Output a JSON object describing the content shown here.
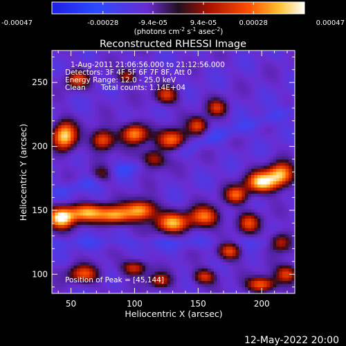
{
  "chart_data": {
    "type": "heatmap",
    "title": "Reconstructed RHESSI Image",
    "xlabel": "Heliocentric X (arcsec)",
    "ylabel": "Heliocentric Y (arcsec)",
    "xlim": [
      35,
      226
    ],
    "ylim": [
      85,
      275
    ],
    "xticks": [
      50,
      100,
      150,
      200
    ],
    "yticks": [
      100,
      150,
      200,
      250
    ],
    "colorbar": {
      "min": -0.00047,
      "max": 0.00047,
      "colormap": "rainbow-blue-to-white-hot",
      "tick_values": [
        -0.00047,
        -0.00028,
        -9.4e-05,
        9.4e-05,
        0.00028,
        0.00047
      ],
      "tick_labels": [
        "-0.00047",
        "-0.00028",
        "-9.4e-05",
        "9.4e-05",
        "0.00028",
        "0.00047"
      ],
      "unit_label_main": "(photons cm",
      "unit_exp1": "-2",
      "unit_mid": " s",
      "unit_exp2": "-1",
      "unit_mid2": " asec",
      "unit_exp3": "-2",
      "unit_tail": ")"
    },
    "annotations": {
      "time_range": "1-Aug-2011 21:06:56.000 to 21:12:56.000",
      "detectors": "Detectors: 3F 4F 5F 6F 7F 8F, Att 0",
      "energy_range": "Energy Range: 12.0 - 25.0 keV",
      "algorithm": "Clean",
      "total_counts": "Total counts: 1.14E+04",
      "peak_position": "Position of Peak = [45,144]"
    },
    "hot_regions": [
      {
        "x": 42,
        "y": 144,
        "w": 10,
        "h": 8,
        "v": 1.0
      },
      {
        "x": 45,
        "y": 208,
        "w": 9,
        "h": 11,
        "v": 0.95
      },
      {
        "x": 62,
        "y": 148,
        "w": 16,
        "h": 7,
        "v": 0.8
      },
      {
        "x": 85,
        "y": 146,
        "w": 12,
        "h": 7,
        "v": 0.75
      },
      {
        "x": 105,
        "y": 150,
        "w": 12,
        "h": 8,
        "v": 0.85
      },
      {
        "x": 130,
        "y": 140,
        "w": 13,
        "h": 8,
        "v": 0.8
      },
      {
        "x": 155,
        "y": 145,
        "w": 12,
        "h": 8,
        "v": 0.7
      },
      {
        "x": 75,
        "y": 205,
        "w": 9,
        "h": 8,
        "v": 0.7
      },
      {
        "x": 100,
        "y": 210,
        "w": 10,
        "h": 8,
        "v": 0.8
      },
      {
        "x": 115,
        "y": 190,
        "w": 10,
        "h": 7,
        "v": 0.65
      },
      {
        "x": 130,
        "y": 205,
        "w": 11,
        "h": 8,
        "v": 0.75
      },
      {
        "x": 150,
        "y": 216,
        "w": 8,
        "h": 7,
        "v": 0.6
      },
      {
        "x": 165,
        "y": 230,
        "w": 8,
        "h": 7,
        "v": 0.5
      },
      {
        "x": 200,
        "y": 172,
        "w": 12,
        "h": 8,
        "v": 0.95
      },
      {
        "x": 215,
        "y": 178,
        "w": 10,
        "h": 9,
        "v": 0.85
      },
      {
        "x": 180,
        "y": 162,
        "w": 9,
        "h": 7,
        "v": 0.65
      },
      {
        "x": 190,
        "y": 140,
        "w": 9,
        "h": 8,
        "v": 0.55
      },
      {
        "x": 175,
        "y": 118,
        "w": 9,
        "h": 7,
        "v": 0.6
      },
      {
        "x": 215,
        "y": 125,
        "w": 9,
        "h": 7,
        "v": 0.6
      },
      {
        "x": 55,
        "y": 252,
        "w": 9,
        "h": 7,
        "v": 0.55
      },
      {
        "x": 95,
        "y": 255,
        "w": 8,
        "h": 6,
        "v": 0.45
      },
      {
        "x": 125,
        "y": 240,
        "w": 9,
        "h": 7,
        "v": 0.55
      },
      {
        "x": 75,
        "y": 178,
        "w": 8,
        "h": 6,
        "v": 0.4
      },
      {
        "x": 60,
        "y": 100,
        "w": 12,
        "h": 7,
        "v": 0.6
      },
      {
        "x": 100,
        "y": 105,
        "w": 10,
        "h": 6,
        "v": 0.55
      },
      {
        "x": 120,
        "y": 95,
        "w": 9,
        "h": 6,
        "v": 0.5
      },
      {
        "x": 155,
        "y": 98,
        "w": 9,
        "h": 6,
        "v": 0.55
      },
      {
        "x": 200,
        "y": 92,
        "w": 11,
        "h": 6,
        "v": 0.7
      },
      {
        "x": 220,
        "y": 100,
        "w": 9,
        "h": 7,
        "v": 0.6
      }
    ]
  },
  "footer": {
    "date": "12-May-2022 20:00"
  }
}
